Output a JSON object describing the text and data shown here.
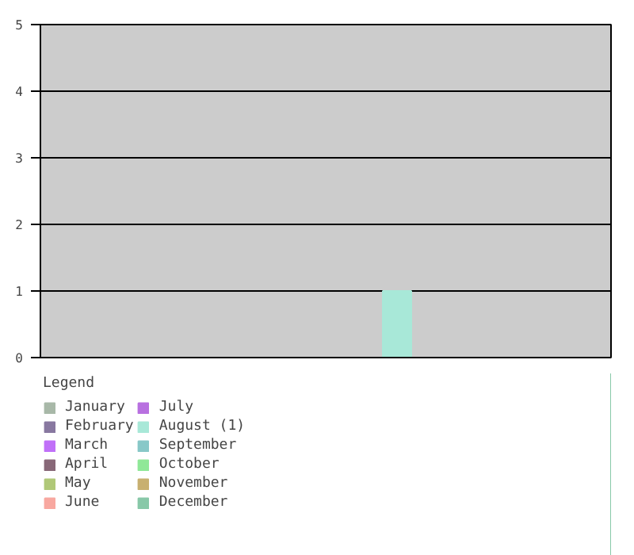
{
  "chart_data": {
    "type": "bar",
    "categories": [
      null,
      null,
      null,
      null,
      null,
      null,
      null,
      null,
      null,
      null,
      null,
      null
    ],
    "series": [
      {
        "name": "January",
        "color": "#a8b8a8",
        "values": [
          0,
          null,
          null,
          null,
          null,
          null,
          null,
          null,
          null,
          null,
          null,
          null
        ]
      },
      {
        "name": "February",
        "color": "#8878a0",
        "values": [
          null,
          0,
          null,
          null,
          null,
          null,
          null,
          null,
          null,
          null,
          null,
          null
        ]
      },
      {
        "name": "March",
        "color": "#c070f8",
        "values": [
          null,
          null,
          0,
          null,
          null,
          null,
          null,
          null,
          null,
          null,
          null,
          null
        ]
      },
      {
        "name": "April",
        "color": "#886878",
        "values": [
          null,
          null,
          null,
          0,
          null,
          null,
          null,
          null,
          null,
          null,
          null,
          null
        ]
      },
      {
        "name": "May",
        "color": "#b0c878",
        "values": [
          null,
          null,
          null,
          null,
          0,
          null,
          null,
          null,
          null,
          null,
          null,
          null
        ]
      },
      {
        "name": "June",
        "color": "#f8a8a0",
        "values": [
          null,
          null,
          null,
          null,
          null,
          0,
          null,
          null,
          null,
          null,
          null,
          null
        ]
      },
      {
        "name": "July",
        "color": "#b870e0",
        "values": [
          null,
          null,
          null,
          null,
          null,
          null,
          0,
          null,
          null,
          null,
          null,
          null
        ]
      },
      {
        "name": "August (1)",
        "color": "#a8e8d8",
        "values": [
          null,
          null,
          null,
          null,
          null,
          null,
          null,
          1,
          null,
          null,
          null,
          null
        ]
      },
      {
        "name": "September",
        "color": "#88c8c8",
        "values": [
          null,
          null,
          null,
          null,
          null,
          null,
          null,
          null,
          0,
          null,
          null,
          null
        ]
      },
      {
        "name": "October",
        "color": "#90e898",
        "values": [
          null,
          null,
          null,
          null,
          null,
          null,
          null,
          null,
          null,
          0,
          null,
          null
        ]
      },
      {
        "name": "November",
        "color": "#c8b070",
        "values": [
          null,
          null,
          null,
          null,
          null,
          null,
          null,
          null,
          null,
          null,
          0,
          null
        ]
      },
      {
        "name": "December",
        "color": "#88c8a8",
        "values": [
          null,
          null,
          null,
          null,
          null,
          null,
          null,
          null,
          null,
          null,
          null,
          0
        ]
      }
    ],
    "ylim": [
      0,
      5
    ],
    "yticks": [
      0,
      1,
      2,
      3,
      4,
      5
    ],
    "grid": "y",
    "legend": "bottom",
    "legend_title": "Legend",
    "tick_labels": "y"
  }
}
